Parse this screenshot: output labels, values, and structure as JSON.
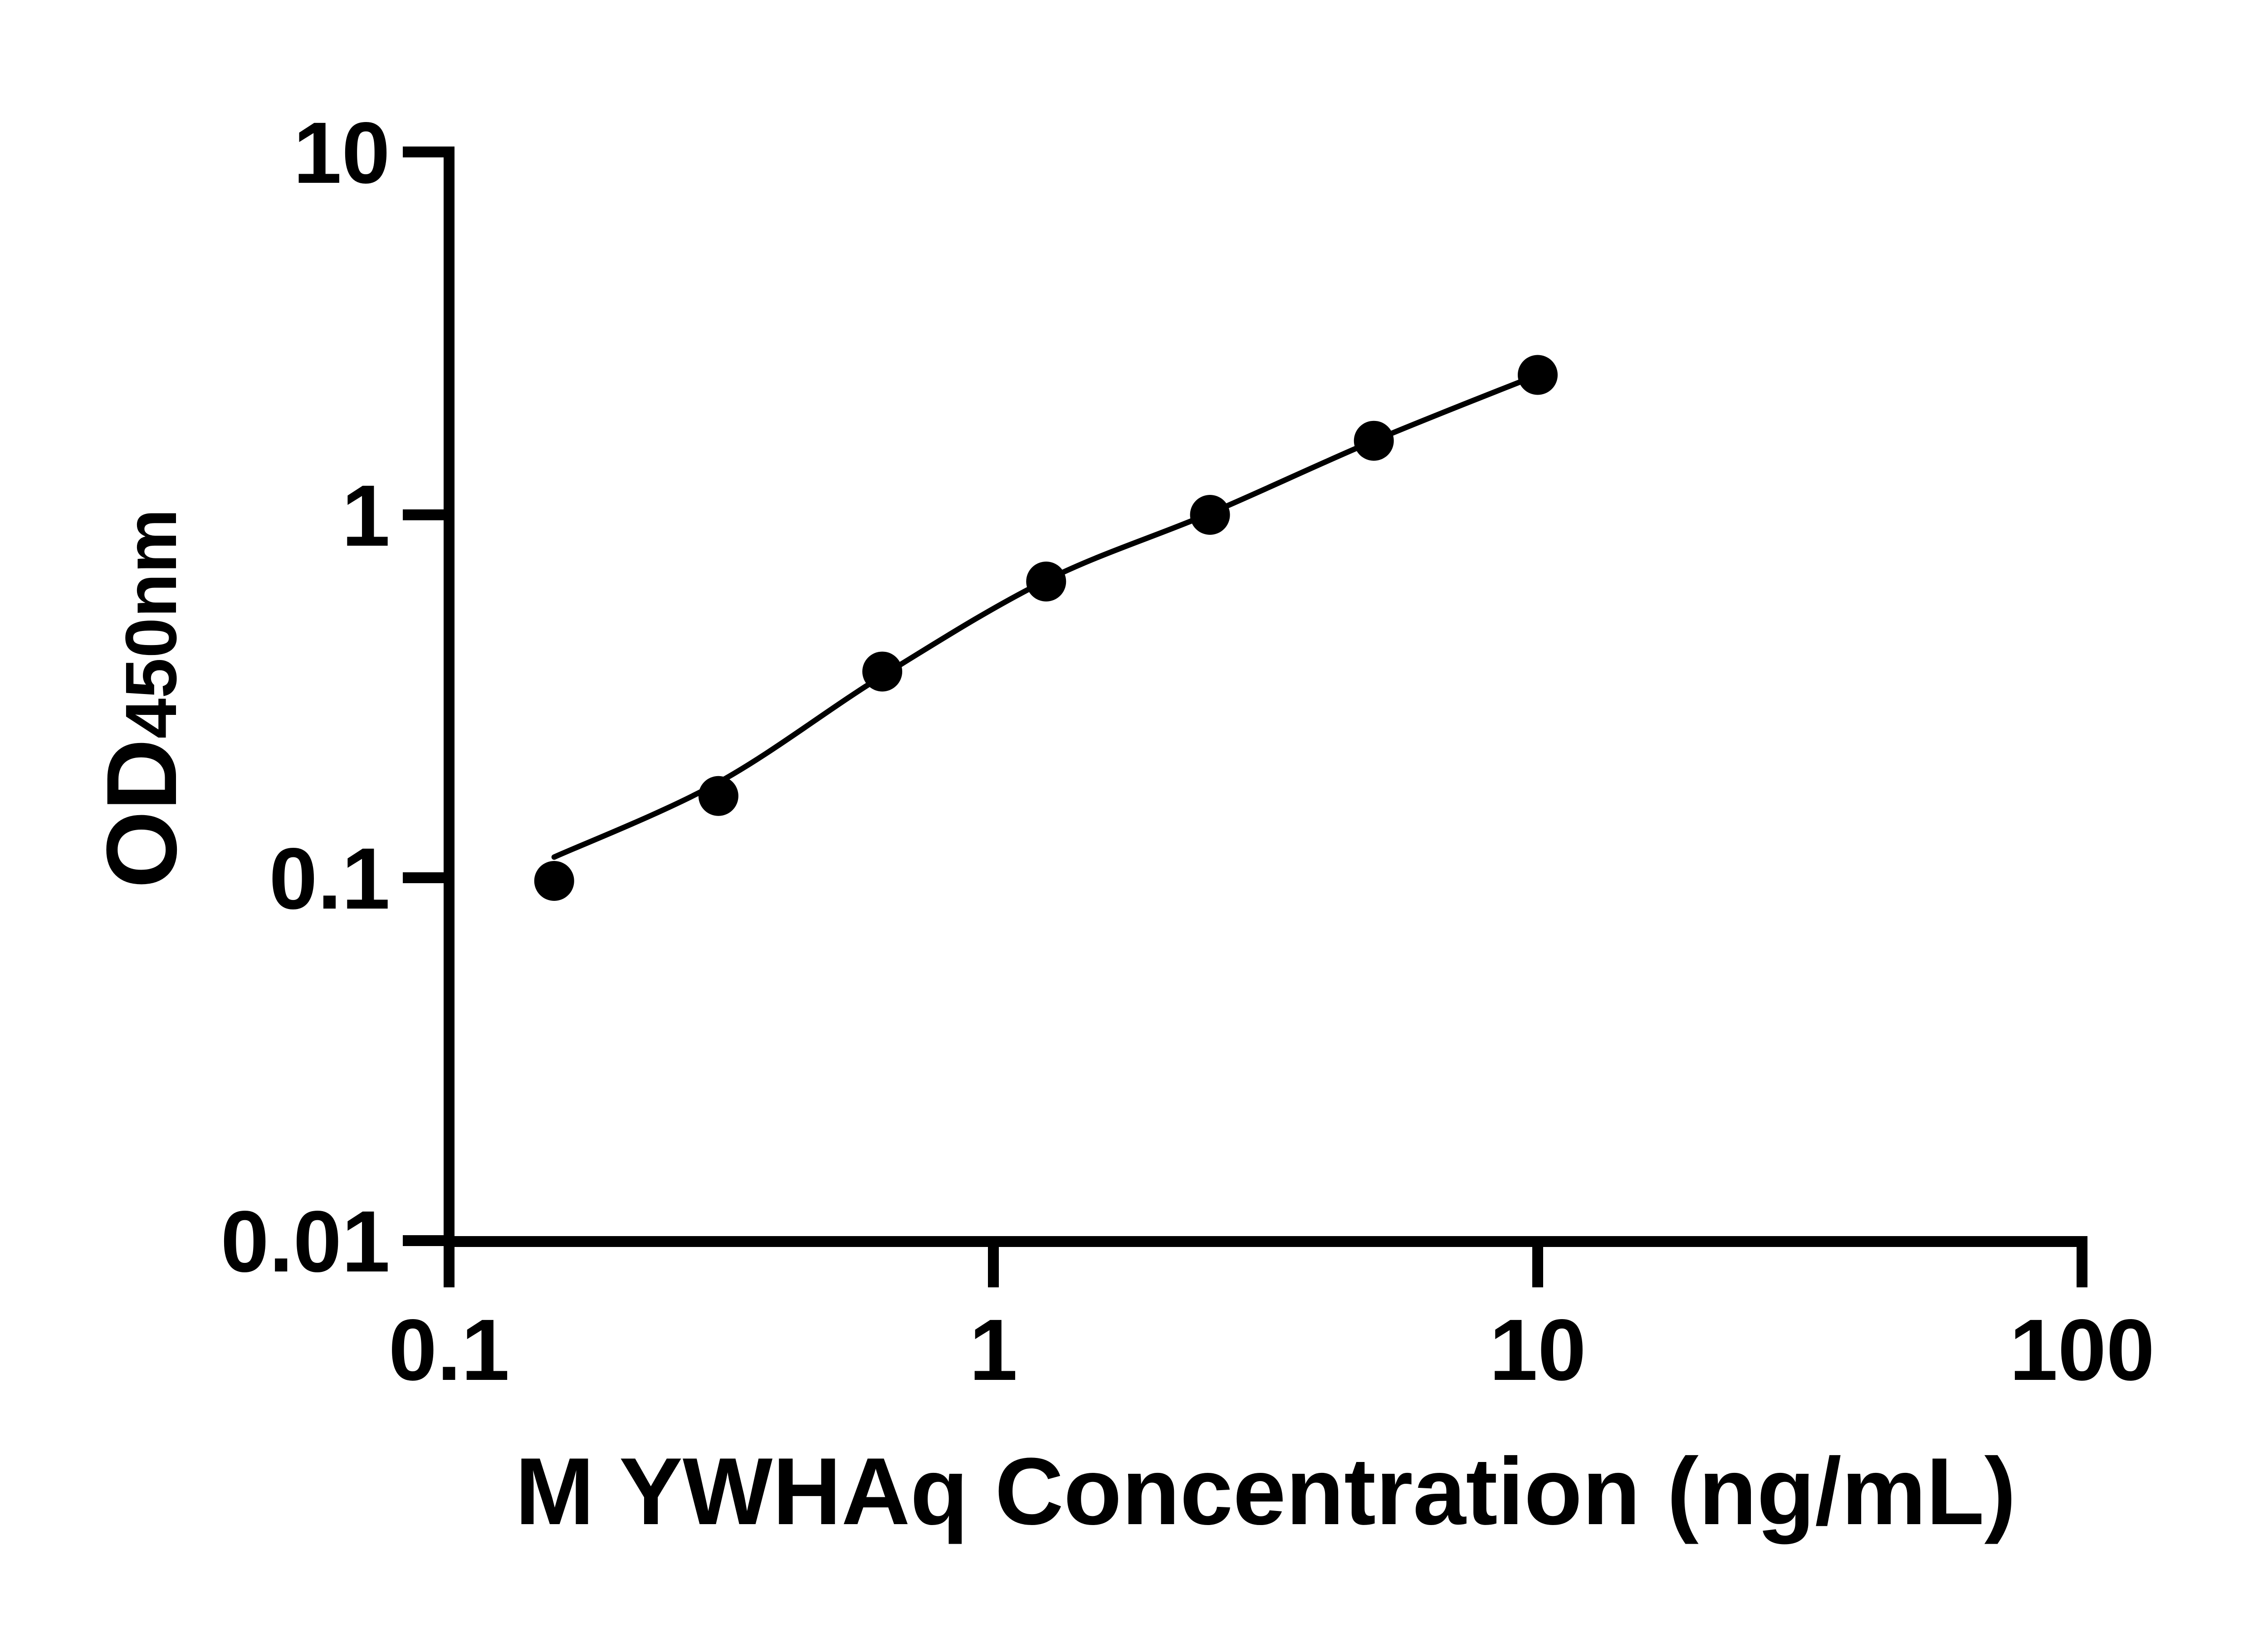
{
  "page": {
    "background_color": "#ffffff",
    "foreground_color": "#000000"
  },
  "chart_data": {
    "type": "scatter",
    "title": "",
    "xlabel": "M YWHAq Concentration (ng/mL)",
    "ylabel": "OD450nm",
    "ylabel_main": "OD",
    "ylabel_sub": "450nm",
    "x_scale": "log",
    "y_scale": "log",
    "xlim": [
      0.1,
      100
    ],
    "ylim": [
      0.01,
      10
    ],
    "grid": false,
    "legend": null,
    "marker_color": "#000000",
    "line_color": "#000000",
    "x_tick_values": [
      0.1,
      1,
      10,
      100
    ],
    "x_tick_labels": [
      "0.1",
      "1",
      "10",
      "100"
    ],
    "y_tick_values": [
      10,
      1,
      0.1,
      0.01
    ],
    "y_tick_labels": [
      "10",
      "1",
      "0.1",
      "0.01"
    ],
    "series": [
      {
        "name": "standard-curve-points",
        "x": [
          0.156,
          0.3125,
          0.625,
          1.25,
          2.5,
          5,
          10
        ],
        "y": [
          0.098,
          0.168,
          0.37,
          0.655,
          1.0,
          1.6,
          2.43
        ]
      }
    ],
    "fit_curve": {
      "name": "four-parameter-fit",
      "x": [
        0.156,
        0.3125,
        0.625,
        1.25,
        2.5,
        5,
        10
      ],
      "y": [
        0.114,
        0.183,
        0.36,
        0.66,
        1.01,
        1.6,
        2.43
      ]
    }
  }
}
